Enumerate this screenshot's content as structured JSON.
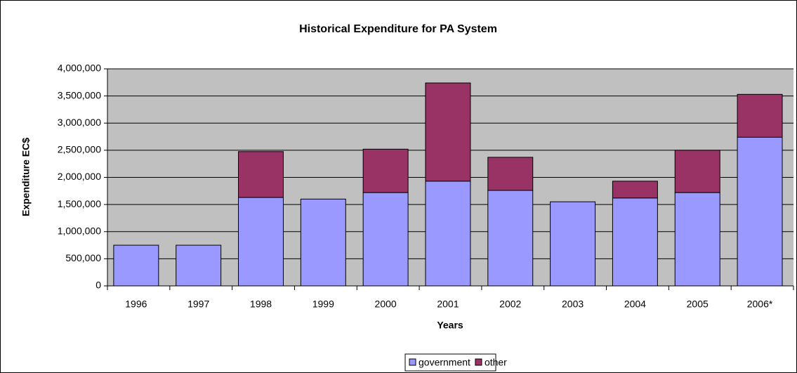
{
  "chart_data": {
    "type": "stacked_bar",
    "title": "Historical Expenditure for PA System",
    "x_label": "Years",
    "y_label": "Expenditure EC$",
    "categories": [
      "1996",
      "1997",
      "1998",
      "1999",
      "2000",
      "2001",
      "2002",
      "2003",
      "2004",
      "2005",
      "2006*"
    ],
    "series": [
      {
        "name": "government",
        "color": "#9999ff",
        "values": [
          750000,
          750000,
          1630000,
          1600000,
          1720000,
          1930000,
          1760000,
          1550000,
          1620000,
          1720000,
          2740000
        ]
      },
      {
        "name": "other",
        "color": "#993366",
        "values": [
          0,
          0,
          845000,
          0,
          800000,
          1810000,
          610000,
          0,
          310000,
          780000,
          790000
        ]
      }
    ],
    "ylim": [
      0,
      4000000
    ],
    "yticks": [
      0,
      {
        "value": 500000,
        "label": "500,000"
      },
      {
        "value": 1000000,
        "label": "1,000,000"
      },
      {
        "value": 1500000,
        "label": "1,500,000"
      },
      {
        "value": 2000000,
        "label": "2,000,000"
      },
      {
        "value": 2500000,
        "label": "2,500,000"
      },
      {
        "value": 3000000,
        "label": "3,000,000"
      },
      {
        "value": 3500000,
        "label": "3,500,000"
      },
      {
        "value": 4000000,
        "label": "4,000,000"
      }
    ],
    "grid": true,
    "legend": "bottom"
  }
}
